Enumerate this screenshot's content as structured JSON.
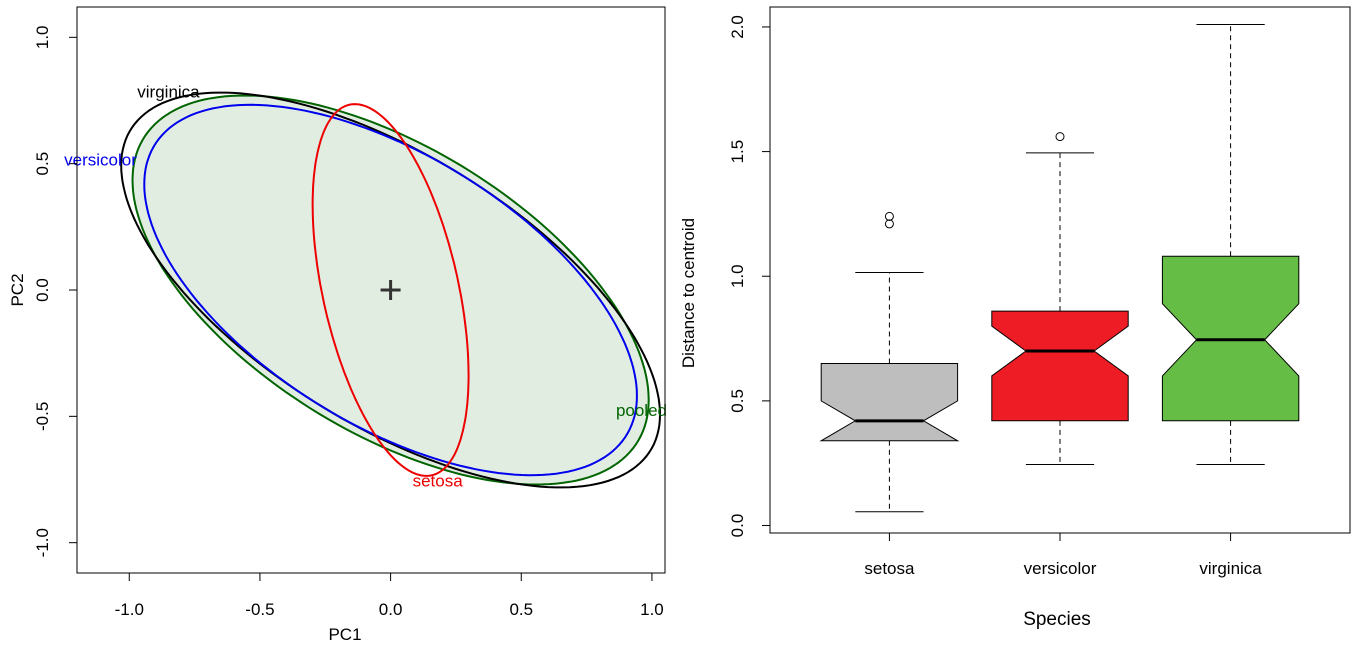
{
  "chart_data": [
    {
      "type": "scatter",
      "subtype": "covariance-ellipses",
      "xlabel": "PC1",
      "ylabel": "PC2",
      "xlim": [
        -1.2,
        1.05
      ],
      "ylim": [
        -1.12,
        1.12
      ],
      "xticks": [
        {
          "value": -1.0,
          "label": "-1.0"
        },
        {
          "value": -0.5,
          "label": "-0.5"
        },
        {
          "value": 0.0,
          "label": "0.0"
        },
        {
          "value": 0.5,
          "label": "0.5"
        },
        {
          "value": 1.0,
          "label": "1.0"
        }
      ],
      "yticks": [
        {
          "value": -1.0,
          "label": "-1.0"
        },
        {
          "value": -0.5,
          "label": "-0.5"
        },
        {
          "value": 0.0,
          "label": "0.0"
        },
        {
          "value": 0.5,
          "label": "0.5"
        },
        {
          "value": 1.0,
          "label": "1.0"
        }
      ],
      "centroid": {
        "x": 0.0,
        "y": 0.0,
        "marker": "+"
      },
      "ellipses": [
        {
          "name": "pooled",
          "label": "pooled",
          "color": "#006400",
          "fill": "#e2ede2",
          "center": [
            0.0,
            0.0
          ],
          "semi_axis_major": 1.12,
          "semi_axis_minor": 0.56,
          "angle_deg": -33.0,
          "label_at": [
            0.96,
            -0.48
          ]
        },
        {
          "name": "virginica",
          "label": "virginica",
          "color": "#000000",
          "center": [
            0.0,
            0.0
          ],
          "semi_axis_major": 1.18,
          "semi_axis_minor": 0.53,
          "angle_deg": -33.0,
          "label_at": [
            -0.85,
            0.78
          ]
        },
        {
          "name": "versicolor",
          "label": "versicolor",
          "color": "#0000ee",
          "center": [
            0.0,
            0.0
          ],
          "semi_axis_major": 1.07,
          "semi_axis_minor": 0.53,
          "angle_deg": -33.0,
          "label_at": [
            -1.11,
            0.51
          ]
        },
        {
          "name": "setosa",
          "label": "setosa",
          "color": "#ee0000",
          "center": [
            0.0,
            0.0
          ],
          "semi_axis_major": 0.75,
          "semi_axis_minor": 0.26,
          "angle_deg": -78.0,
          "label_at": [
            0.18,
            -0.76
          ]
        }
      ]
    },
    {
      "type": "boxplot",
      "notched": true,
      "xlabel": "Species",
      "ylabel": "Distance to centroid",
      "ylim": [
        -0.03,
        2.08
      ],
      "yticks": [
        {
          "value": 0.0,
          "label": "0.0"
        },
        {
          "value": 0.5,
          "label": "0.5"
        },
        {
          "value": 1.0,
          "label": "1.0"
        },
        {
          "value": 1.5,
          "label": "1.5"
        },
        {
          "value": 2.0,
          "label": "2.0"
        }
      ],
      "categories": [
        "setosa",
        "versicolor",
        "virginica"
      ],
      "boxes": [
        {
          "name": "setosa",
          "color": "#bebebe",
          "whisker_low": 0.055,
          "q1": 0.34,
          "median": 0.42,
          "q3": 0.65,
          "whisker_high": 1.015,
          "notch_low": 0.34,
          "notch_high": 0.5,
          "outliers": [
            1.21,
            1.24
          ]
        },
        {
          "name": "versicolor",
          "color": "#ee1c25",
          "whisker_low": 0.245,
          "q1": 0.42,
          "median": 0.7,
          "q3": 0.86,
          "whisker_high": 1.495,
          "notch_low": 0.6,
          "notch_high": 0.8,
          "outliers": [
            1.56
          ]
        },
        {
          "name": "virginica",
          "color": "#66bd45",
          "whisker_low": 0.245,
          "q1": 0.42,
          "median": 0.745,
          "q3": 1.08,
          "whisker_high": 2.01,
          "notch_low": 0.6,
          "notch_high": 0.89,
          "outliers": []
        }
      ]
    }
  ]
}
